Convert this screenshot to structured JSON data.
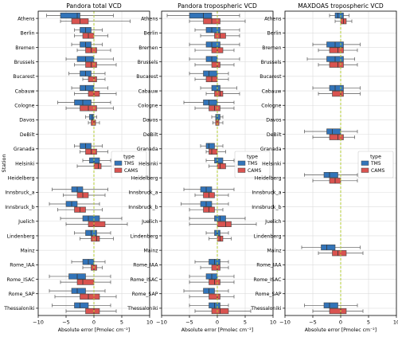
{
  "chart_data": [
    {
      "type": "boxplot",
      "title": "Pandora total VCD",
      "xlabel": "Absolute error [Pmolec cm⁻²]",
      "ylabel": "Station",
      "xlim": [
        -10,
        10
      ],
      "xticks": [
        "−10",
        "−5",
        "0",
        "5",
        "10"
      ],
      "grid": true,
      "legend": {
        "title": "type",
        "entries": [
          "TM5",
          "CAMS"
        ],
        "placement": "right"
      },
      "categories": [
        "Athens",
        "Berlin",
        "Bremen",
        "Brussels",
        "Bucarest",
        "Cabauw",
        "Cologne",
        "Davos",
        "DeBilt",
        "Granada",
        "Helsinki",
        "Heidelberg",
        "Innsbruck_a",
        "Innsbruck_b",
        "Juelich",
        "Lindenberg",
        "Mainz",
        "Rome_IAA",
        "Rome_ISAC",
        "Rome_SAP",
        "Thessaloniki"
      ],
      "series": [
        {
          "name": "TM5",
          "boxes": [
            [
              -8.5,
              -6,
              -3,
              -2.5,
              3.5
            ],
            [
              -3.5,
              -2.5,
              -1.5,
              -0.5,
              1.5
            ],
            [
              -4,
              -2.5,
              -1.5,
              -0.5,
              1.5
            ],
            [
              -5,
              -3,
              -1.5,
              0,
              3.5
            ],
            [
              -4.5,
              -2.5,
              -1.5,
              -0.5,
              2
            ],
            [
              -4,
              -2.5,
              -1.5,
              0,
              2.5
            ],
            [
              -6.5,
              -3.5,
              -2,
              -0.5,
              3
            ],
            [
              -1.5,
              -0.8,
              -0.3,
              0,
              0.5
            ],
            null,
            [
              -3.5,
              -2.5,
              -1.5,
              -0.5,
              1.5
            ],
            [
              -2,
              -0.8,
              0,
              1,
              3
            ],
            null,
            [
              -7.5,
              -4,
              -3,
              -2,
              2.5
            ],
            [
              -8,
              -5,
              -4,
              -3,
              1
            ],
            [
              -6,
              -2,
              -1,
              1,
              5
            ],
            [
              -3.5,
              -1.5,
              -0.5,
              0.5,
              3
            ],
            null,
            [
              -4,
              -2,
              -1,
              0,
              2
            ],
            [
              -8,
              -4.5,
              -3,
              -1.5,
              3
            ],
            [
              -8,
              -4,
              -3,
              -1.5,
              2
            ],
            [
              -7.5,
              -3.5,
              -2.5,
              -1,
              3
            ]
          ]
        },
        {
          "name": "CAMS",
          "boxes": [
            [
              -6,
              -4,
              -2.5,
              -1,
              6.5
            ],
            [
              -3.5,
              -2,
              -1,
              0,
              2.5
            ],
            [
              -3,
              -1.5,
              -0.5,
              0.5,
              3
            ],
            [
              -3.5,
              -1.5,
              -0.5,
              0.5,
              4
            ],
            [
              -2,
              -1,
              0,
              0.5,
              2
            ],
            [
              -3.5,
              -1,
              0,
              1,
              4
            ],
            [
              -5,
              -2.5,
              -1,
              0.5,
              3.5
            ],
            [
              -1,
              -0.5,
              0,
              0.3,
              1
            ],
            null,
            [
              -2.5,
              -1.5,
              -0.5,
              0.5,
              2.5
            ],
            [
              -3,
              0,
              0.8,
              1.3,
              3.5
            ],
            null,
            [
              -5.5,
              -3,
              -2,
              -1,
              2
            ],
            [
              -6.5,
              -3.5,
              -2.5,
              -1.5,
              1.5
            ],
            [
              -5,
              -1,
              0,
              2,
              6
            ],
            [
              -2.5,
              -0.5,
              0.5,
              1,
              3.5
            ],
            null,
            [
              -2,
              -0.5,
              0,
              0.5,
              1.5
            ],
            [
              -6,
              -3,
              -2,
              0,
              3
            ],
            [
              -7,
              -2.5,
              -1,
              1,
              4
            ],
            [
              -5,
              -1.5,
              0,
              1,
              4
            ]
          ]
        }
      ]
    },
    {
      "type": "boxplot",
      "title": "Pandora tropospheric VCD",
      "xlabel": "Absolute error [Pmolec cm⁻²]",
      "xlim": [
        -10,
        10
      ],
      "xticks": [
        "−10",
        "−5",
        "0",
        "5",
        "10"
      ],
      "grid": true,
      "legend": {
        "title": "type",
        "entries": [
          "TM5",
          "CAMS"
        ],
        "placement": "right"
      },
      "categories": [
        "Athens",
        "Berlin",
        "Bremen",
        "Brussels",
        "Bucarest",
        "Cabauw",
        "Cologne",
        "Davos",
        "DeBilt",
        "Granada",
        "Helsinki",
        "Heidelberg",
        "Innsbruck_a",
        "Innsbruck_b",
        "Juelich",
        "Lindenberg",
        "Mainz",
        "Rome_IAA",
        "Rome_ISAC",
        "Rome_SAP",
        "Thessaloniki"
      ],
      "series": [
        {
          "name": "TM5",
          "boxes": [
            [
              -9,
              -5,
              -2.5,
              -1,
              4
            ],
            [
              -4,
              -2,
              -1,
              0.5,
              4
            ],
            [
              -5,
              -2,
              -1,
              0.5,
              4
            ],
            [
              -5,
              -2,
              -1,
              0,
              4
            ],
            [
              -5,
              -2.5,
              -1.5,
              0,
              2
            ],
            [
              -3,
              -1,
              0,
              0.5,
              3.5
            ],
            [
              -6,
              -2.5,
              -1.5,
              0,
              3
            ],
            [
              -1,
              -0.3,
              0,
              0.5,
              1
            ],
            null,
            [
              -3,
              -2,
              -1.5,
              -0.5,
              1
            ],
            [
              -2,
              -0.5,
              0,
              1,
              3
            ],
            null,
            [
              -6,
              -3,
              -2,
              -1,
              3
            ],
            [
              -6.5,
              -3,
              -2,
              -1,
              2
            ],
            [
              -5,
              -0.5,
              0.5,
              1.5,
              5
            ],
            [
              -2,
              -0.5,
              0,
              0.5,
              2
            ],
            null,
            [
              -4,
              -1.5,
              -0.5,
              0.5,
              2
            ],
            [
              -5,
              -2,
              -1,
              0,
              3
            ],
            [
              -6,
              -2.5,
              -1.5,
              -0.5,
              2
            ],
            [
              -5,
              -1.5,
              -0.5,
              0.5,
              2
            ]
          ]
        },
        {
          "name": "CAMS",
          "boxes": [
            [
              -5,
              -2.5,
              -1,
              0.5,
              5
            ],
            [
              -3,
              -0.5,
              0.5,
              1.5,
              4
            ],
            [
              -4,
              -1,
              0,
              1,
              3
            ],
            [
              -4,
              -1,
              0,
              0.5,
              3
            ],
            [
              -4,
              -2,
              -1,
              0,
              2
            ],
            [
              -2,
              -0.5,
              0.5,
              1,
              4
            ],
            [
              -4,
              -1.5,
              -0.5,
              0.5,
              3
            ],
            [
              -0.8,
              -0.3,
              0,
              0.3,
              1
            ],
            null,
            [
              -2,
              -1.5,
              -1,
              0,
              1.5
            ],
            [
              -1.5,
              0,
              0.5,
              1.5,
              3.5
            ],
            null,
            [
              -4,
              -2.5,
              -1.5,
              -0.5,
              2
            ],
            [
              -5,
              -2.5,
              -1.5,
              -0.5,
              1
            ],
            [
              -5,
              0,
              1.5,
              2.5,
              7
            ],
            [
              -1.5,
              0,
              0.5,
              1,
              2.5
            ],
            null,
            [
              -3,
              -1,
              0,
              0.5,
              2
            ],
            [
              -5,
              -1.5,
              -0.5,
              0.5,
              3
            ],
            [
              -5,
              -1.5,
              0,
              0.5,
              3
            ],
            [
              -4,
              -1,
              0.5,
              2,
              6
            ]
          ]
        }
      ]
    },
    {
      "type": "boxplot",
      "title": "MAXDOAS tropospheric VCD",
      "xlabel": "Absolute error [Pmolec cm⁻²]",
      "xlim": [
        -10,
        10
      ],
      "xticks": [
        "−10",
        "−5",
        "0",
        "5",
        "10"
      ],
      "grid": true,
      "legend": {
        "title": "type",
        "entries": [
          "TM5",
          "CAMS"
        ],
        "placement": "right"
      },
      "categories": [
        "Athens",
        "Berlin",
        "Bremen",
        "Brussels",
        "Bucarest",
        "Cabauw",
        "Cologne",
        "Davos",
        "DeBilt",
        "Granada",
        "Helsinki",
        "Heidelberg",
        "Innsbruck_a",
        "Innsbruck_b",
        "Juelich",
        "Lindenberg",
        "Mainz",
        "Rome_IAA",
        "Rome_ISAC",
        "Rome_SAP",
        "Thessaloniki"
      ],
      "series": [
        {
          "name": "TM5",
          "boxes": [
            [
              -2,
              -1,
              -0.5,
              0.5,
              1.5
            ],
            null,
            [
              -5,
              -2.5,
              -1,
              0.5,
              3.5
            ],
            [
              -6,
              -2.5,
              -1,
              0.5,
              2.5
            ],
            null,
            [
              -5,
              -2,
              -1,
              0.5,
              3.5
            ],
            null,
            null,
            [
              -6.5,
              -2.5,
              -1.5,
              0,
              3
            ],
            null,
            null,
            [
              -6.5,
              -3,
              -2,
              -0.5,
              3
            ],
            null,
            null,
            null,
            null,
            [
              -7,
              -3.5,
              -2.5,
              -1,
              3.5
            ],
            null,
            null,
            null,
            [
              -6.5,
              -3,
              -2,
              -0.5,
              3
            ]
          ]
        },
        {
          "name": "CAMS",
          "boxes": [
            [
              -1,
              0,
              0.5,
              1,
              2
            ],
            null,
            [
              -4,
              -2,
              -0.5,
              0.5,
              3
            ],
            [
              -4,
              -2,
              -0.5,
              0.5,
              3
            ],
            null,
            [
              -4,
              -1.5,
              0,
              0.5,
              3.5
            ],
            null,
            null,
            [
              -5,
              -2,
              -0.5,
              0.5,
              2.5
            ],
            null,
            null,
            [
              -5,
              -2,
              -1,
              0,
              3
            ],
            null,
            null,
            null,
            null,
            [
              -4,
              -1.5,
              -0.5,
              1,
              4
            ],
            null,
            null,
            null,
            [
              -5,
              -2,
              0,
              1,
              4
            ]
          ]
        }
      ]
    }
  ],
  "colors": {
    "tm5": "#3274b9",
    "cams": "#d95350",
    "refline": "#b3cc33",
    "grid": "#dcdcdc"
  }
}
